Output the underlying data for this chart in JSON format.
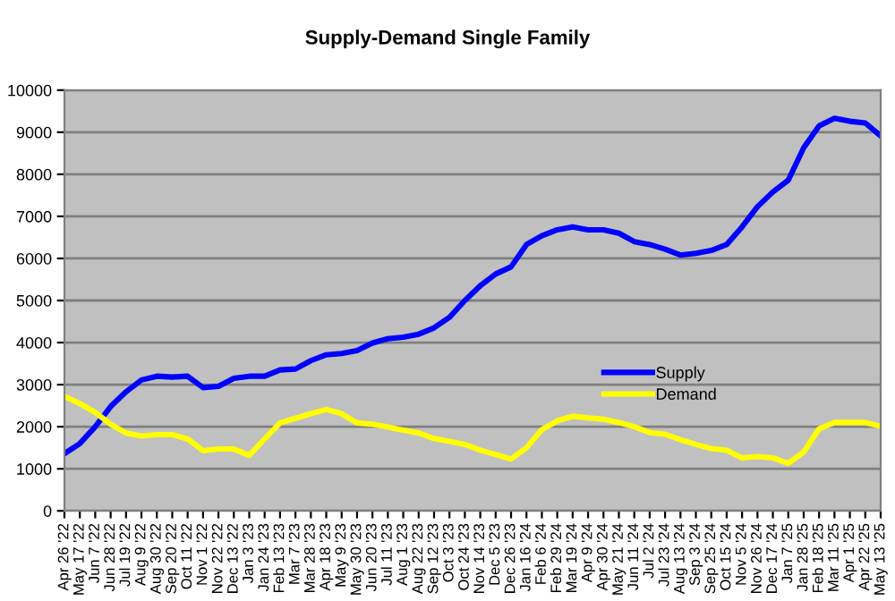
{
  "chart_data": {
    "type": "line",
    "title": "Supply-Demand Single Family",
    "categories": [
      "Apr 26 '22",
      "May 17 '22",
      "Jun 7 '22",
      "Jun 28 '22",
      "Jul 19 '22",
      "Aug 9 '22",
      "Aug 30 '22",
      "Sep 20 '22",
      "Oct 11 '22",
      "Nov 1 '22",
      "Nov 22 '22",
      "Dec 13 '22",
      "Jan 3 '23",
      "Jan 24 '23",
      "Feb 13 '23",
      "Mar 7 '23",
      "Mar 28 '23",
      "Apr 18 '23",
      "May 9 '23",
      "May 30 '23",
      "Jun 20 '23",
      "Jul 11 '23",
      "Aug 1 '23",
      "Aug 22 '23",
      "Sep 12 '23",
      "Oct 3 '23",
      "Oct 24 '23",
      "Nov 14 '23",
      "Dec 5 '23",
      "Dec 26 '23",
      "Jan 16 '24",
      "Feb 6 '24",
      "Feb 29 '24",
      "Mar 19 '24",
      "Apr 9 '24",
      "Apr 30 '24",
      "May 21 '24",
      "Jun 11 '24",
      "Jul 2 '24",
      "Jul 23 '24",
      "Aug 13 '24",
      "Sep 3 '24",
      "Sep 25 '24",
      "Oct 15 '24",
      "Nov 5 '24",
      "Nov 26 '24",
      "Dec 17 '24",
      "Jan 7 '25",
      "Jan 28 '25",
      "Feb 18 '25",
      "Mar 11 '25",
      "Apr 1 '25",
      "Apr 22 '25",
      "May 13 '25"
    ],
    "series": [
      {
        "name": "Supply",
        "color": "#0000ff",
        "values": [
          1360,
          1600,
          2000,
          2480,
          2830,
          3110,
          3200,
          3180,
          3200,
          2930,
          2960,
          3150,
          3200,
          3200,
          3350,
          3370,
          3570,
          3710,
          3740,
          3810,
          3990,
          4090,
          4130,
          4200,
          4350,
          4600,
          5000,
          5350,
          5630,
          5800,
          6330,
          6540,
          6680,
          6750,
          6680,
          6680,
          6600,
          6400,
          6330,
          6220,
          6080,
          6120,
          6190,
          6330,
          6750,
          7230,
          7580,
          7860,
          8630,
          9150,
          9330,
          9260,
          9220,
          8910
        ]
      },
      {
        "name": "Demand",
        "color": "#ffff00",
        "values": [
          2720,
          2550,
          2340,
          2060,
          1850,
          1780,
          1810,
          1810,
          1710,
          1430,
          1470,
          1470,
          1320,
          1710,
          2090,
          2200,
          2310,
          2410,
          2310,
          2090,
          2060,
          1990,
          1920,
          1850,
          1720,
          1650,
          1580,
          1440,
          1340,
          1230,
          1500,
          1930,
          2140,
          2250,
          2210,
          2180,
          2100,
          2000,
          1860,
          1820,
          1690,
          1580,
          1480,
          1440,
          1260,
          1290,
          1260,
          1130,
          1400,
          1950,
          2100,
          2100,
          2100,
          2010
        ]
      }
    ],
    "ylim": [
      0,
      10000
    ],
    "yticks": [
      0,
      1000,
      2000,
      3000,
      4000,
      5000,
      6000,
      7000,
      8000,
      9000,
      10000
    ],
    "grid": "y",
    "legend": "center",
    "marker": "none",
    "line_style": "solid"
  }
}
